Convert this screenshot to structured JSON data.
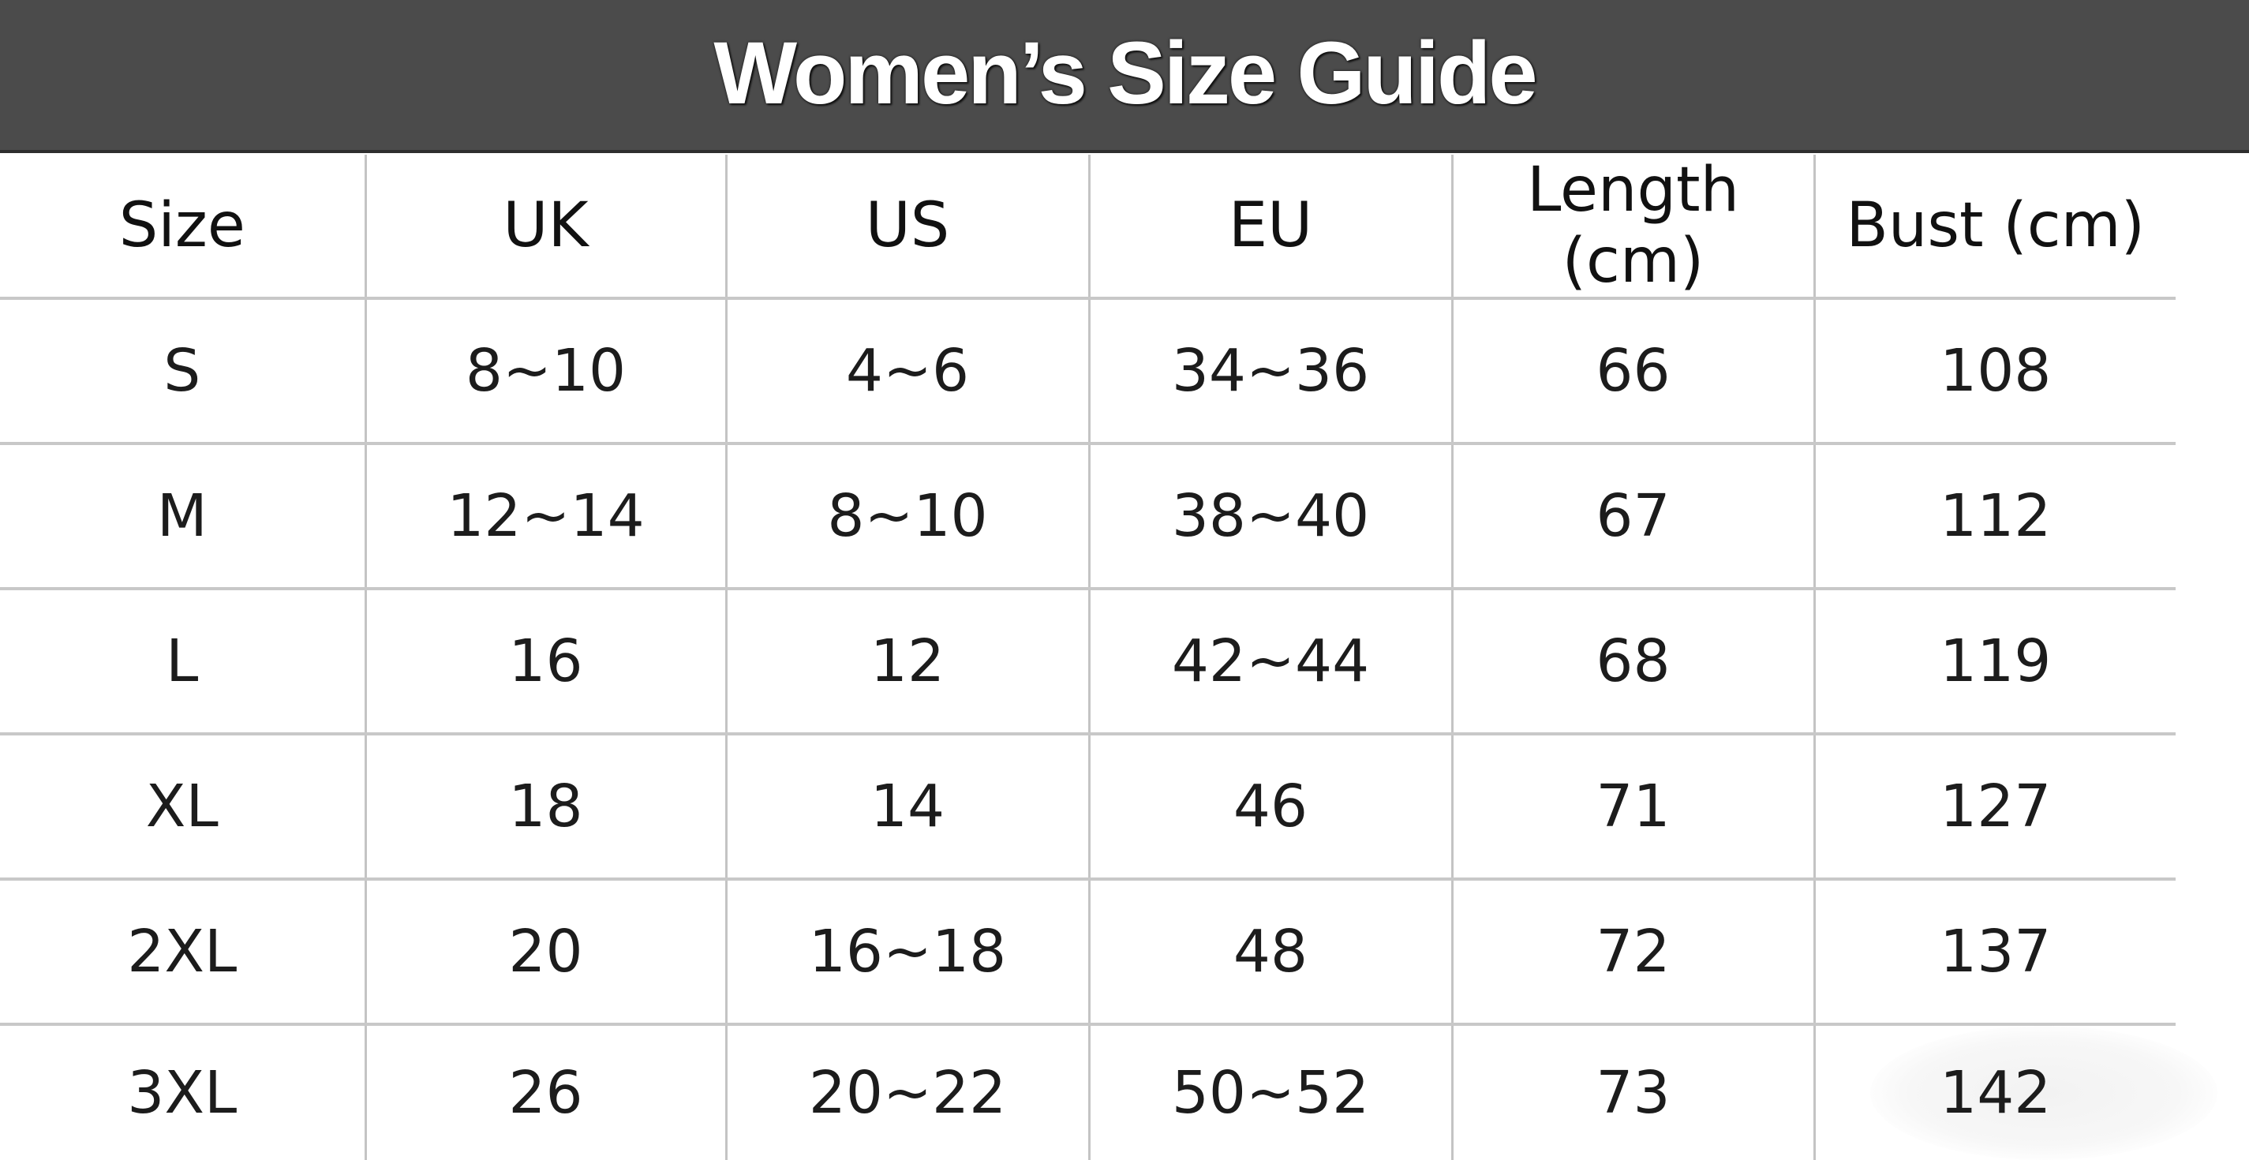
{
  "title": "Women’s Size Guide",
  "table": {
    "headers": [
      "Size",
      "UK",
      "US",
      "EU",
      "Length (cm)",
      "Bust (cm)"
    ],
    "rows": [
      [
        "S",
        "8~10",
        "4~6",
        "34~36",
        "66",
        "108"
      ],
      [
        "M",
        "12~14",
        "8~10",
        "38~40",
        "67",
        "112"
      ],
      [
        "L",
        "16",
        "12",
        "42~44",
        "68",
        "119"
      ],
      [
        "XL",
        "18",
        "14",
        "46",
        "71",
        "127"
      ],
      [
        "2XL",
        "20",
        "16~18",
        "48",
        "72",
        "137"
      ],
      [
        "3XL",
        "26",
        "20~22",
        "50~52",
        "73",
        "142"
      ]
    ]
  },
  "colors": {
    "header_bg": "#4b4b4b",
    "header_text": "#ffffff",
    "grid": "#c4c4c4"
  }
}
